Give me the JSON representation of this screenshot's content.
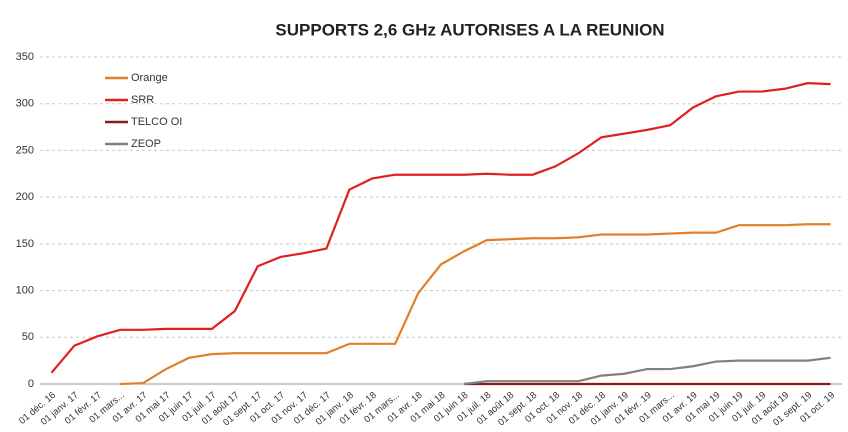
{
  "chart_data": {
    "type": "line",
    "title": "SUPPORTS 2,6 GHz AUTORISES A LA REUNION",
    "categories": [
      "01 déc. 16",
      "01 janv. 17",
      "01 févr. 17",
      "01 mars...",
      "01 avr. 17",
      "01 mai 17",
      "01 juin 17",
      "01 juil. 17",
      "01 août 17",
      "01 sept. 17",
      "01 oct. 17",
      "01 nov. 17",
      "01 déc. 17",
      "01 janv. 18",
      "01 févr. 18",
      "01 mars...",
      "01 avr. 18",
      "01 mai 18",
      "01 juin 18",
      "01 juil. 18",
      "01 août 18",
      "01 sept. 18",
      "01 oct. 18",
      "01 nov. 18",
      "01 déc. 18",
      "01 janv. 19",
      "01 févr. 19",
      "01 mars...",
      "01 avr. 19",
      "01 mai 19",
      "01 juin 19",
      "01 juil. 19",
      "01 août 19",
      "01 sept. 19",
      "01 oct. 19"
    ],
    "series": [
      {
        "name": "Orange",
        "color": "#e07f28",
        "values": [
          null,
          null,
          null,
          0,
          1,
          16,
          28,
          32,
          33,
          33,
          33,
          33,
          33,
          43,
          43,
          43,
          97,
          128,
          142,
          154,
          155,
          156,
          156,
          157,
          160,
          160,
          160,
          161,
          162,
          162,
          170,
          170,
          170,
          171,
          171
        ]
      },
      {
        "name": "SRR",
        "color": "#e02020",
        "values": [
          12,
          41,
          51,
          58,
          58,
          59,
          59,
          59,
          78,
          126,
          136,
          140,
          145,
          208,
          220,
          224,
          224,
          224,
          224,
          225,
          224,
          224,
          233,
          247,
          264,
          268,
          272,
          277,
          296,
          308,
          313,
          313,
          316,
          322,
          321
        ]
      },
      {
        "name": "TELCO OI",
        "color": "#8b1a1a",
        "values": [
          null,
          null,
          null,
          null,
          null,
          null,
          null,
          null,
          null,
          null,
          null,
          null,
          null,
          null,
          null,
          null,
          null,
          null,
          0,
          0,
          0,
          0,
          0,
          0,
          0,
          0,
          0,
          0,
          0,
          0,
          0,
          0,
          0,
          0,
          0
        ]
      },
      {
        "name": "ZEOP",
        "color": "#808080",
        "values": [
          null,
          null,
          null,
          null,
          null,
          null,
          null,
          null,
          null,
          null,
          null,
          null,
          null,
          null,
          null,
          null,
          null,
          null,
          0,
          3,
          3,
          3,
          3,
          3,
          9,
          11,
          16,
          16,
          19,
          24,
          25,
          25,
          25,
          25,
          28
        ]
      }
    ],
    "ylim": [
      0,
      350
    ],
    "yticks": [
      0,
      50,
      100,
      150,
      200,
      250,
      300,
      350
    ],
    "grid": true,
    "legend": "upper left"
  }
}
